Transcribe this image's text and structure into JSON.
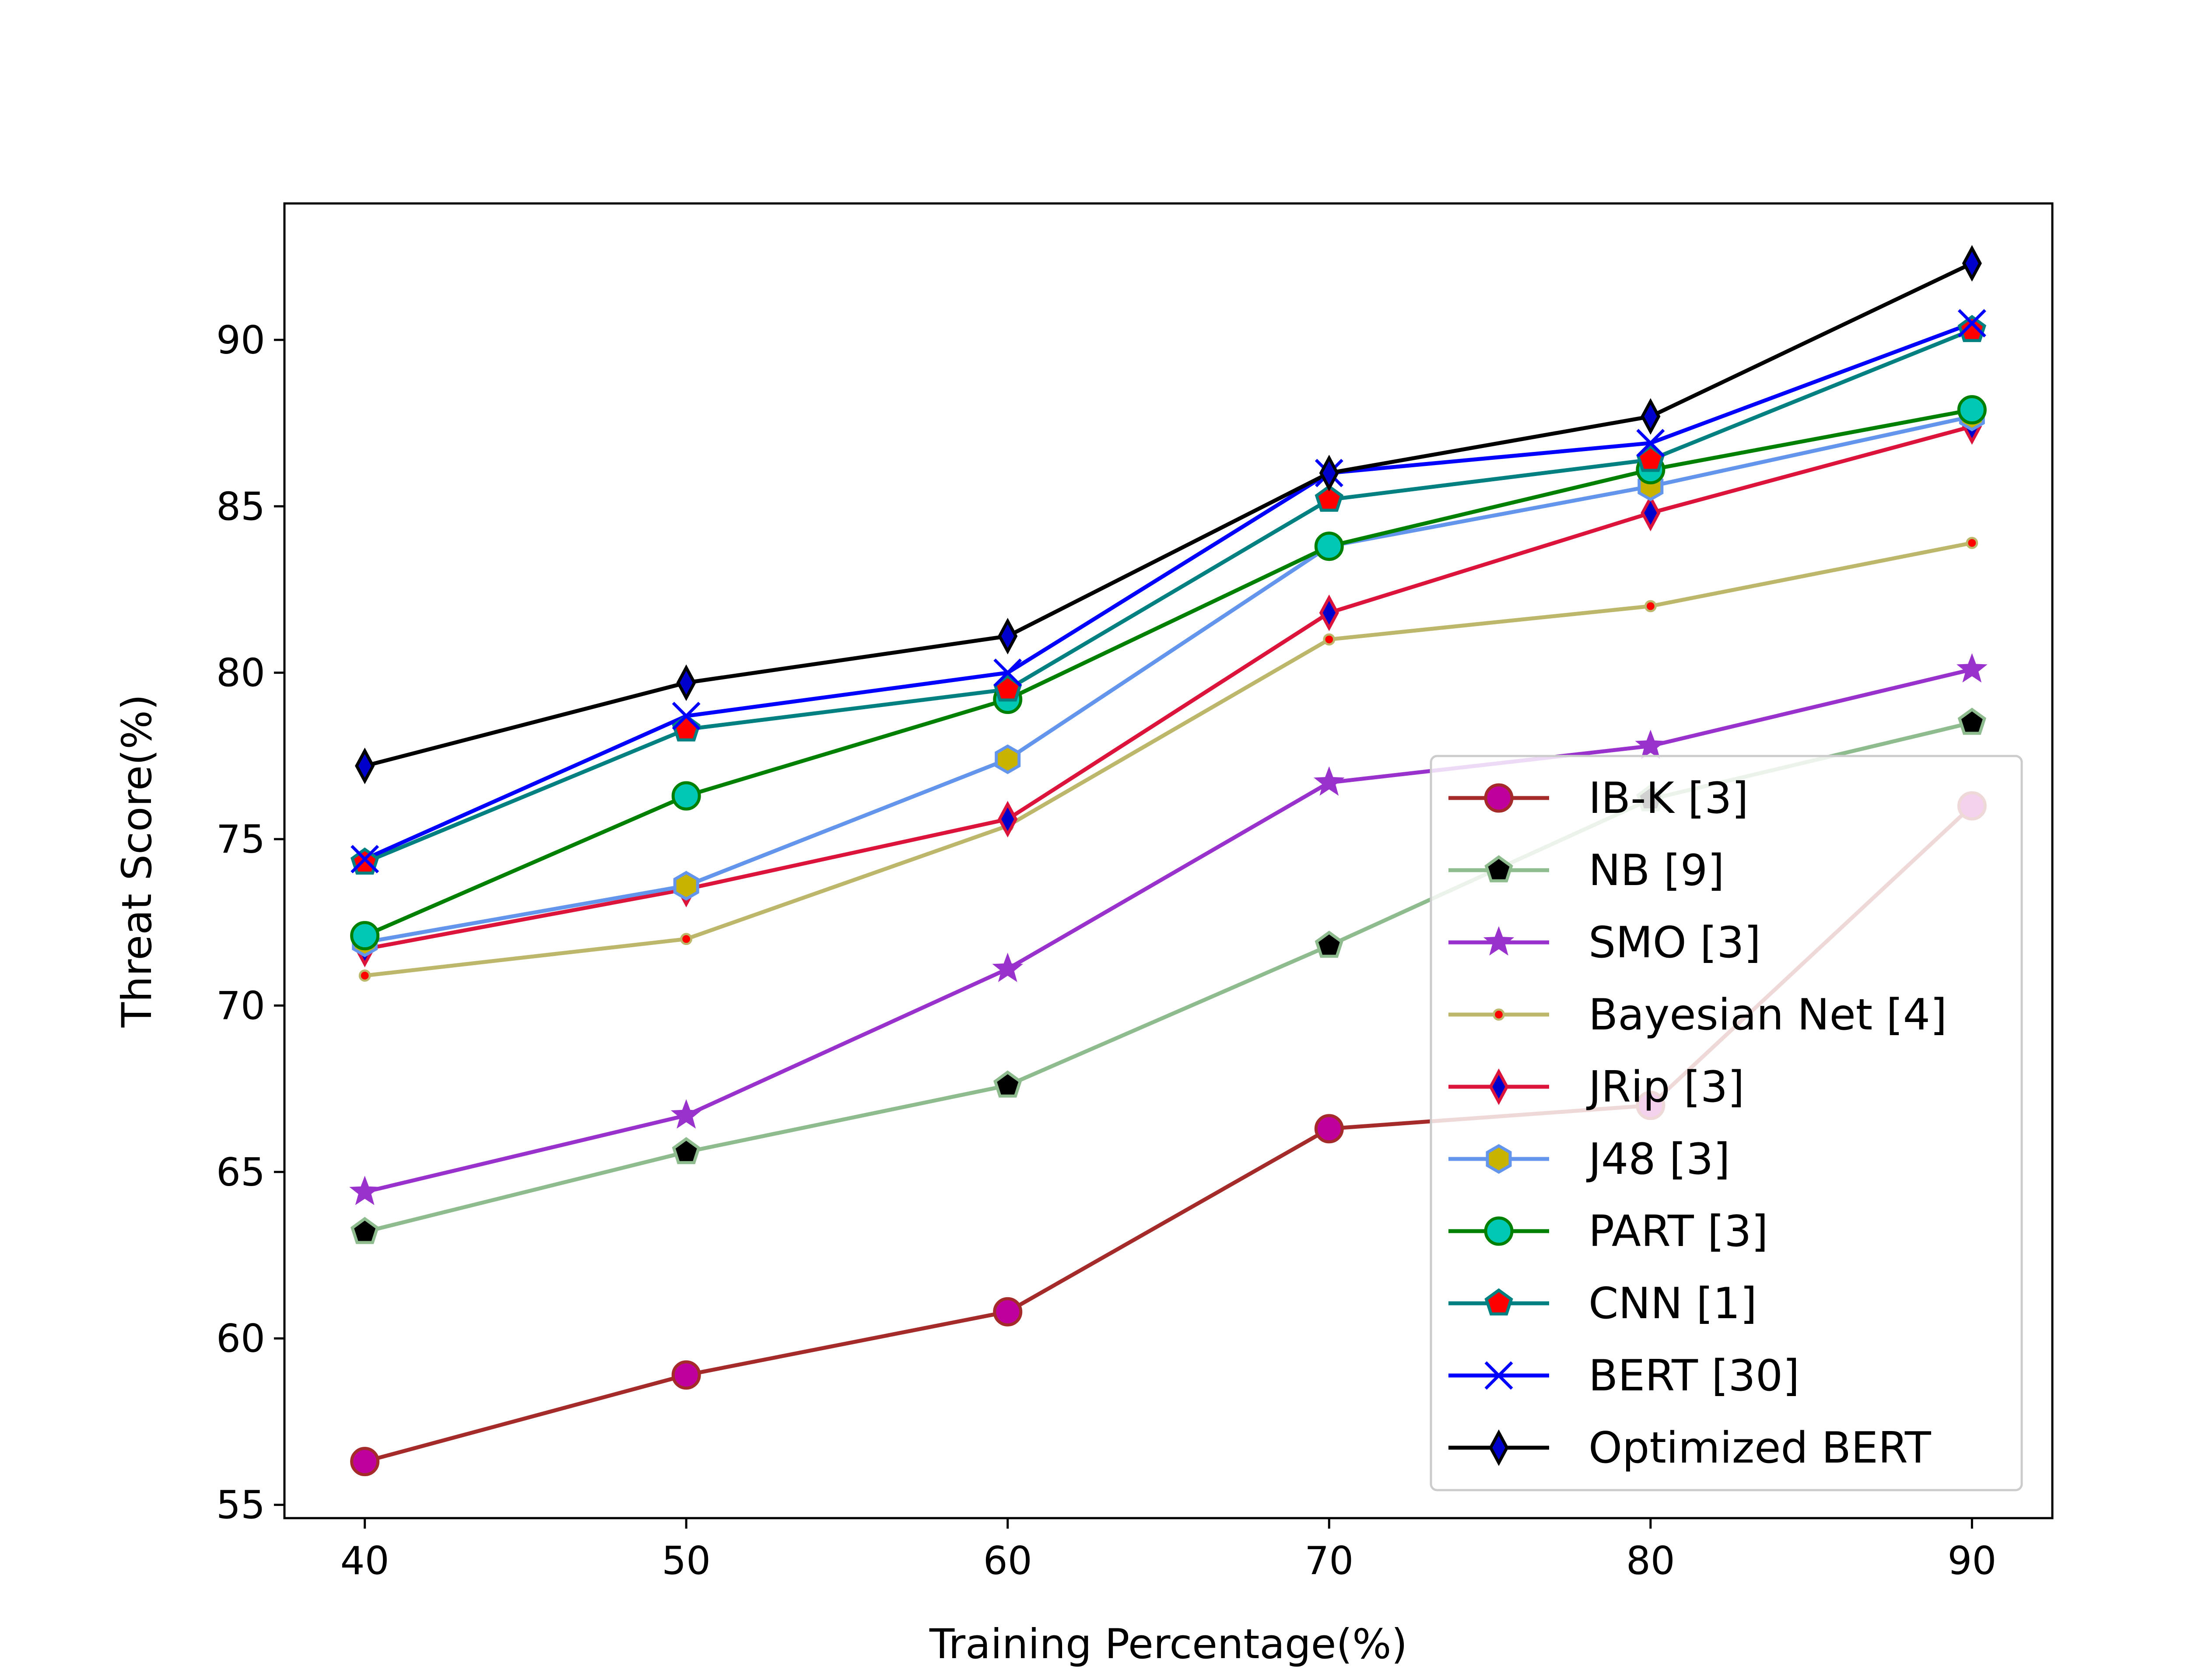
{
  "chart_data": {
    "type": "line",
    "title": "",
    "xlabel": "Training Percentage(%)",
    "ylabel": "Threat Score(%)",
    "x": [
      40,
      50,
      60,
      70,
      80,
      90
    ],
    "xlim": [
      37.5,
      92.5
    ],
    "ylim": [
      54.6,
      94.1
    ],
    "xticks": [
      "40",
      "50",
      "60",
      "70",
      "80",
      "90"
    ],
    "yticks": [
      "55",
      "60",
      "65",
      "70",
      "75",
      "80",
      "85",
      "90"
    ],
    "grid": false,
    "legend_position": "lower-right",
    "series": [
      {
        "name": "IB-K [3]",
        "values": [
          56.3,
          58.9,
          60.8,
          66.3,
          67.0,
          76.0
        ],
        "color": "#a52a2a",
        "marker": "circle",
        "marker_face": "#c0009c",
        "marker_edge": "#a52a2a"
      },
      {
        "name": "NB [9]",
        "values": [
          63.2,
          65.6,
          67.6,
          71.8,
          76.2,
          78.5
        ],
        "color": "#8fbc8f",
        "marker": "pentagon",
        "marker_face": "#000000",
        "marker_edge": "#8fbc8f"
      },
      {
        "name": "SMO [3]",
        "values": [
          64.4,
          66.7,
          71.1,
          76.7,
          77.8,
          80.1
        ],
        "color": "#9932cc",
        "marker": "star",
        "marker_face": "#9932cc",
        "marker_edge": "#9932cc"
      },
      {
        "name": "Bayesian Net [4]",
        "values": [
          70.9,
          72.0,
          75.4,
          81.0,
          82.0,
          83.9
        ],
        "color": "#bdb76b",
        "marker": "dot",
        "marker_face": "#ff0000",
        "marker_edge": "#bdb76b"
      },
      {
        "name": "JRip [3]",
        "values": [
          71.7,
          73.5,
          75.6,
          81.8,
          84.8,
          87.4
        ],
        "color": "#dc143c",
        "marker": "thin-diamond",
        "marker_face": "#0000cd",
        "marker_edge": "#dc143c"
      },
      {
        "name": "J48 [3]",
        "values": [
          71.9,
          73.6,
          77.4,
          83.8,
          85.6,
          87.7
        ],
        "color": "#6495ed",
        "marker": "hexagon",
        "marker_face": "#c8b400",
        "marker_edge": "#6495ed"
      },
      {
        "name": "PART [3]",
        "values": [
          72.1,
          76.3,
          79.2,
          83.8,
          86.1,
          87.9
        ],
        "color": "#008000",
        "marker": "circle",
        "marker_face": "#00c8b4",
        "marker_edge": "#008000"
      },
      {
        "name": "CNN [1]",
        "values": [
          74.3,
          78.3,
          79.5,
          85.2,
          86.4,
          90.3
        ],
        "color": "#008080",
        "marker": "pentagon",
        "marker_face": "#ff0000",
        "marker_edge": "#008080"
      },
      {
        "name": "BERT [30]",
        "values": [
          74.4,
          78.7,
          80.0,
          86.0,
          86.9,
          90.5
        ],
        "color": "#0000ff",
        "marker": "x",
        "marker_face": "none",
        "marker_edge": "#0000ff"
      },
      {
        "name": "Optimized BERT",
        "values": [
          77.2,
          79.7,
          81.1,
          86.0,
          87.7,
          92.3
        ],
        "color": "#000000",
        "marker": "thin-diamond",
        "marker_face": "#0000cd",
        "marker_edge": "#000000"
      }
    ]
  }
}
